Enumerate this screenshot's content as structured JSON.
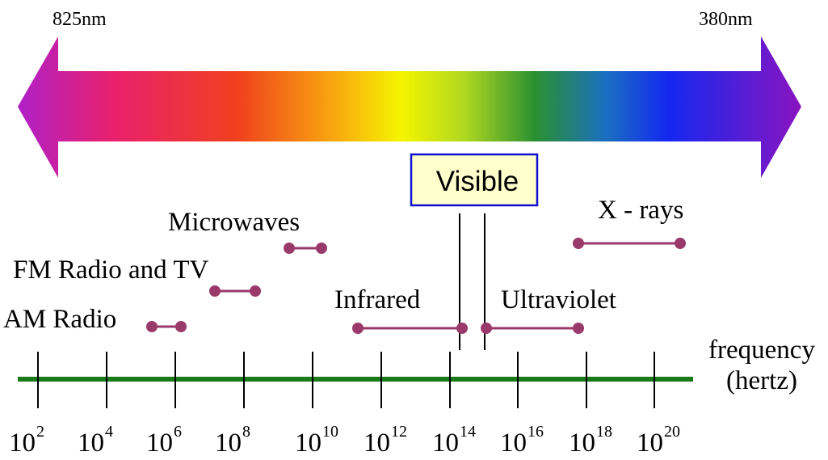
{
  "spectrum": {
    "left_wavelength": "825nm",
    "right_wavelength": "380nm",
    "gradient_colors": [
      "#b020c8",
      "#e8206e",
      "#f0401e",
      "#f9a410",
      "#f5f500",
      "#b0d820",
      "#2a9030",
      "#1a70c0",
      "#1428f0",
      "#8a14c0"
    ]
  },
  "visible_box": {
    "label": "Visible",
    "border_color": "#1010d0",
    "fill_color": "#ffffcc"
  },
  "bands": [
    {
      "id": "am",
      "label": "AM Radio"
    },
    {
      "id": "fm",
      "label": "FM Radio and TV"
    },
    {
      "id": "micro",
      "label": "Microwaves"
    },
    {
      "id": "ir",
      "label": "Infrared"
    },
    {
      "id": "uv",
      "label": "Ultraviolet"
    },
    {
      "id": "xray",
      "label": "X - rays"
    }
  ],
  "axis": {
    "label_line1": "frequency",
    "label_line2": "(hertz)",
    "line_color": "#1a7a1a",
    "ticks": [
      {
        "base": "10",
        "exp": "2"
      },
      {
        "base": "10",
        "exp": "4"
      },
      {
        "base": "10",
        "exp": "6"
      },
      {
        "base": "10",
        "exp": "8"
      },
      {
        "base": "10",
        "exp": "10"
      },
      {
        "base": "10",
        "exp": "12"
      },
      {
        "base": "10",
        "exp": "14"
      },
      {
        "base": "10",
        "exp": "16"
      },
      {
        "base": "10",
        "exp": "18"
      },
      {
        "base": "10",
        "exp": "20"
      }
    ]
  },
  "band_color": "#9a3a6a"
}
